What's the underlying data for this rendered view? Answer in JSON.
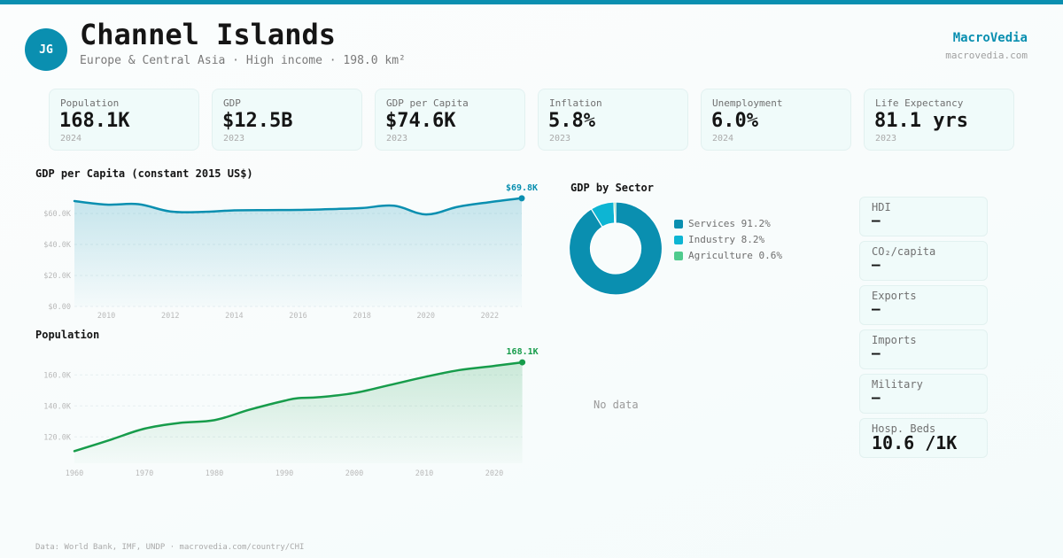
{
  "header": {
    "avatar_initials": "JG",
    "title": "Channel Islands",
    "subtitle": "Europe & Central Asia · High income · 198.0 km²",
    "brand": "MacroVedia",
    "brand_url": "macrovedia.com"
  },
  "kpis": [
    {
      "label": "Population",
      "value": "168.1K",
      "year": "2024"
    },
    {
      "label": "GDP",
      "value": "$12.5B",
      "year": "2023"
    },
    {
      "label": "GDP per Capita",
      "value": "$74.6K",
      "year": "2023"
    },
    {
      "label": "Inflation",
      "value": "5.8%",
      "year": "2023"
    },
    {
      "label": "Unemployment",
      "value": "6.0%",
      "year": "2024"
    },
    {
      "label": "Life Expectancy",
      "value": "81.1 yrs",
      "year": "2023"
    }
  ],
  "side_stats": [
    {
      "label": "HDI",
      "value": "—"
    },
    {
      "label": "CO₂/capita",
      "value": "—"
    },
    {
      "label": "Exports",
      "value": "—"
    },
    {
      "label": "Imports",
      "value": "—"
    },
    {
      "label": "Military",
      "value": "—"
    },
    {
      "label": "Hosp. Beds",
      "value": "10.6 /1K"
    }
  ],
  "no_data_label": "No data",
  "footer": "Data: World Bank, IMF, UNDP · macrovedia.com/country/CHI",
  "colors": {
    "accent": "#0a8fb0",
    "population_line": "#179c4b",
    "services": "#0a8fb0",
    "industry": "#0db5d3",
    "agriculture": "#4fcb8d"
  },
  "chart_data": [
    {
      "id": "gdp_per_capita",
      "type": "area",
      "title": "GDP per Capita (constant 2015 US$)",
      "xlabel": "",
      "ylabel": "",
      "x": [
        2009,
        2010,
        2011,
        2012,
        2013,
        2014,
        2015,
        2016,
        2017,
        2018,
        2019,
        2020,
        2021,
        2022,
        2023
      ],
      "values": [
        68000,
        65700,
        66000,
        61300,
        61000,
        62000,
        62200,
        62300,
        62800,
        63500,
        65000,
        59400,
        64300,
        67300,
        69800
      ],
      "ylim": [
        0,
        80000
      ],
      "y_ticks": [
        0,
        20000,
        40000,
        60000
      ],
      "y_tick_labels": [
        "$0.00",
        "$20.0K",
        "$40.0K",
        "$60.0K"
      ],
      "x_ticks": [
        2010,
        2012,
        2014,
        2016,
        2018,
        2020,
        2022
      ],
      "last_value_label": "$69.8K",
      "grid": true
    },
    {
      "id": "population",
      "type": "area",
      "title": "Population",
      "xlabel": "",
      "ylabel": "",
      "x": [
        1960,
        1965,
        1970,
        1975,
        1980,
        1985,
        1990,
        1992,
        1995,
        2000,
        2005,
        2010,
        2015,
        2020,
        2024
      ],
      "values": [
        110800,
        117900,
        125300,
        129000,
        130800,
        137500,
        143300,
        145000,
        145600,
        148300,
        153400,
        158600,
        163100,
        165800,
        168100
      ],
      "ylim": [
        103000,
        171000
      ],
      "y_ticks": [
        120000,
        140000,
        160000
      ],
      "y_tick_labels": [
        "120.0K",
        "140.0K",
        "160.0K"
      ],
      "x_ticks": [
        1960,
        1970,
        1980,
        1990,
        2000,
        2010,
        2020
      ],
      "last_value_label": "168.1K",
      "grid": true
    },
    {
      "id": "gdp_by_sector",
      "type": "pie",
      "title": "GDP by Sector",
      "categories": [
        "Services",
        "Industry",
        "Agriculture"
      ],
      "values": [
        91.2,
        8.2,
        0.6
      ],
      "unit": "%",
      "legend": "right"
    }
  ]
}
